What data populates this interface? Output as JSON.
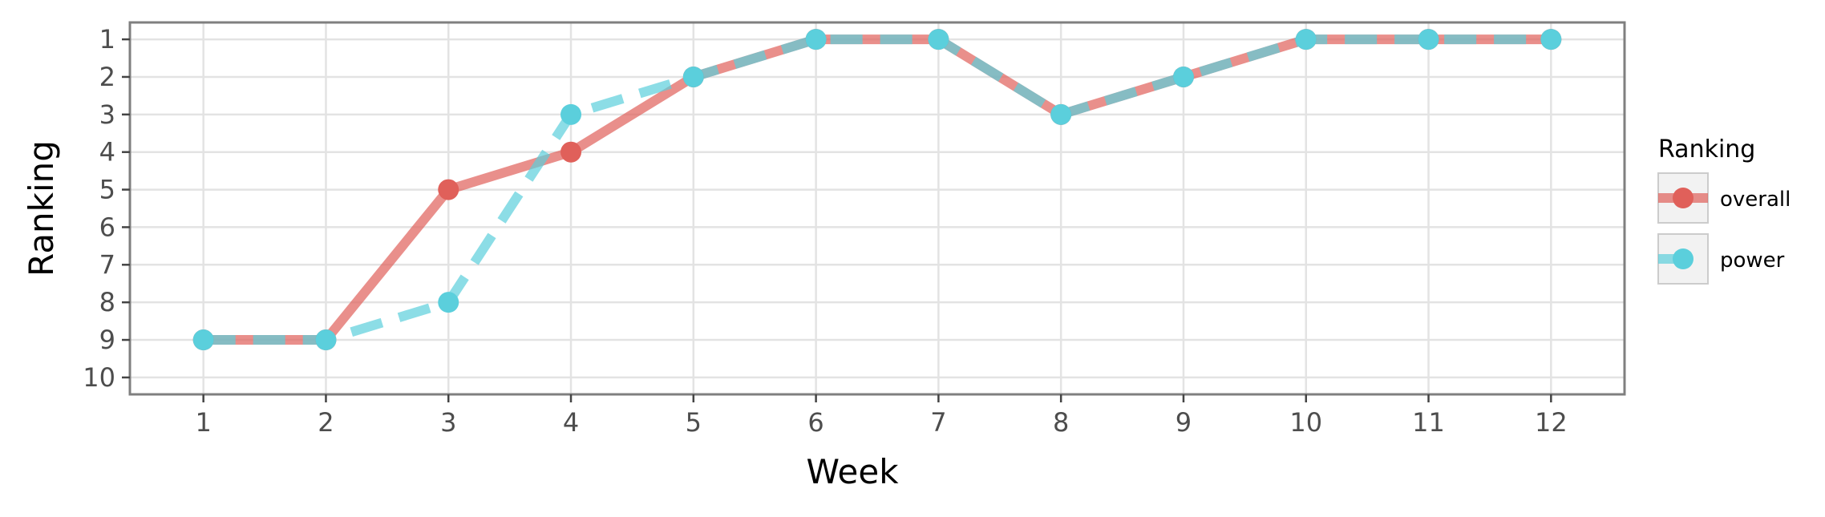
{
  "chart_data": {
    "type": "line",
    "xlabel": "Week",
    "ylabel": "Ranking",
    "x": [
      1,
      2,
      3,
      4,
      5,
      6,
      7,
      8,
      9,
      10,
      11,
      12
    ],
    "xlim": [
      0.4,
      12.6
    ],
    "ylim": [
      10.45,
      0.55
    ],
    "y_reversed": true,
    "y_ticks": [
      1,
      2,
      3,
      4,
      5,
      6,
      7,
      8,
      9,
      10
    ],
    "grid": true,
    "legend": {
      "title": "Ranking",
      "placement": "right"
    },
    "series": [
      {
        "name": "overall",
        "values": [
          9,
          9,
          5,
          4,
          2,
          1,
          1,
          3,
          2,
          1,
          1,
          1
        ],
        "color": "#E0605A",
        "line_style": "solid"
      },
      {
        "name": "power",
        "values": [
          9,
          9,
          8,
          3,
          2,
          1,
          1,
          3,
          2,
          1,
          1,
          1
        ],
        "color": "#5BCFDC",
        "line_style": "dashed"
      }
    ]
  }
}
